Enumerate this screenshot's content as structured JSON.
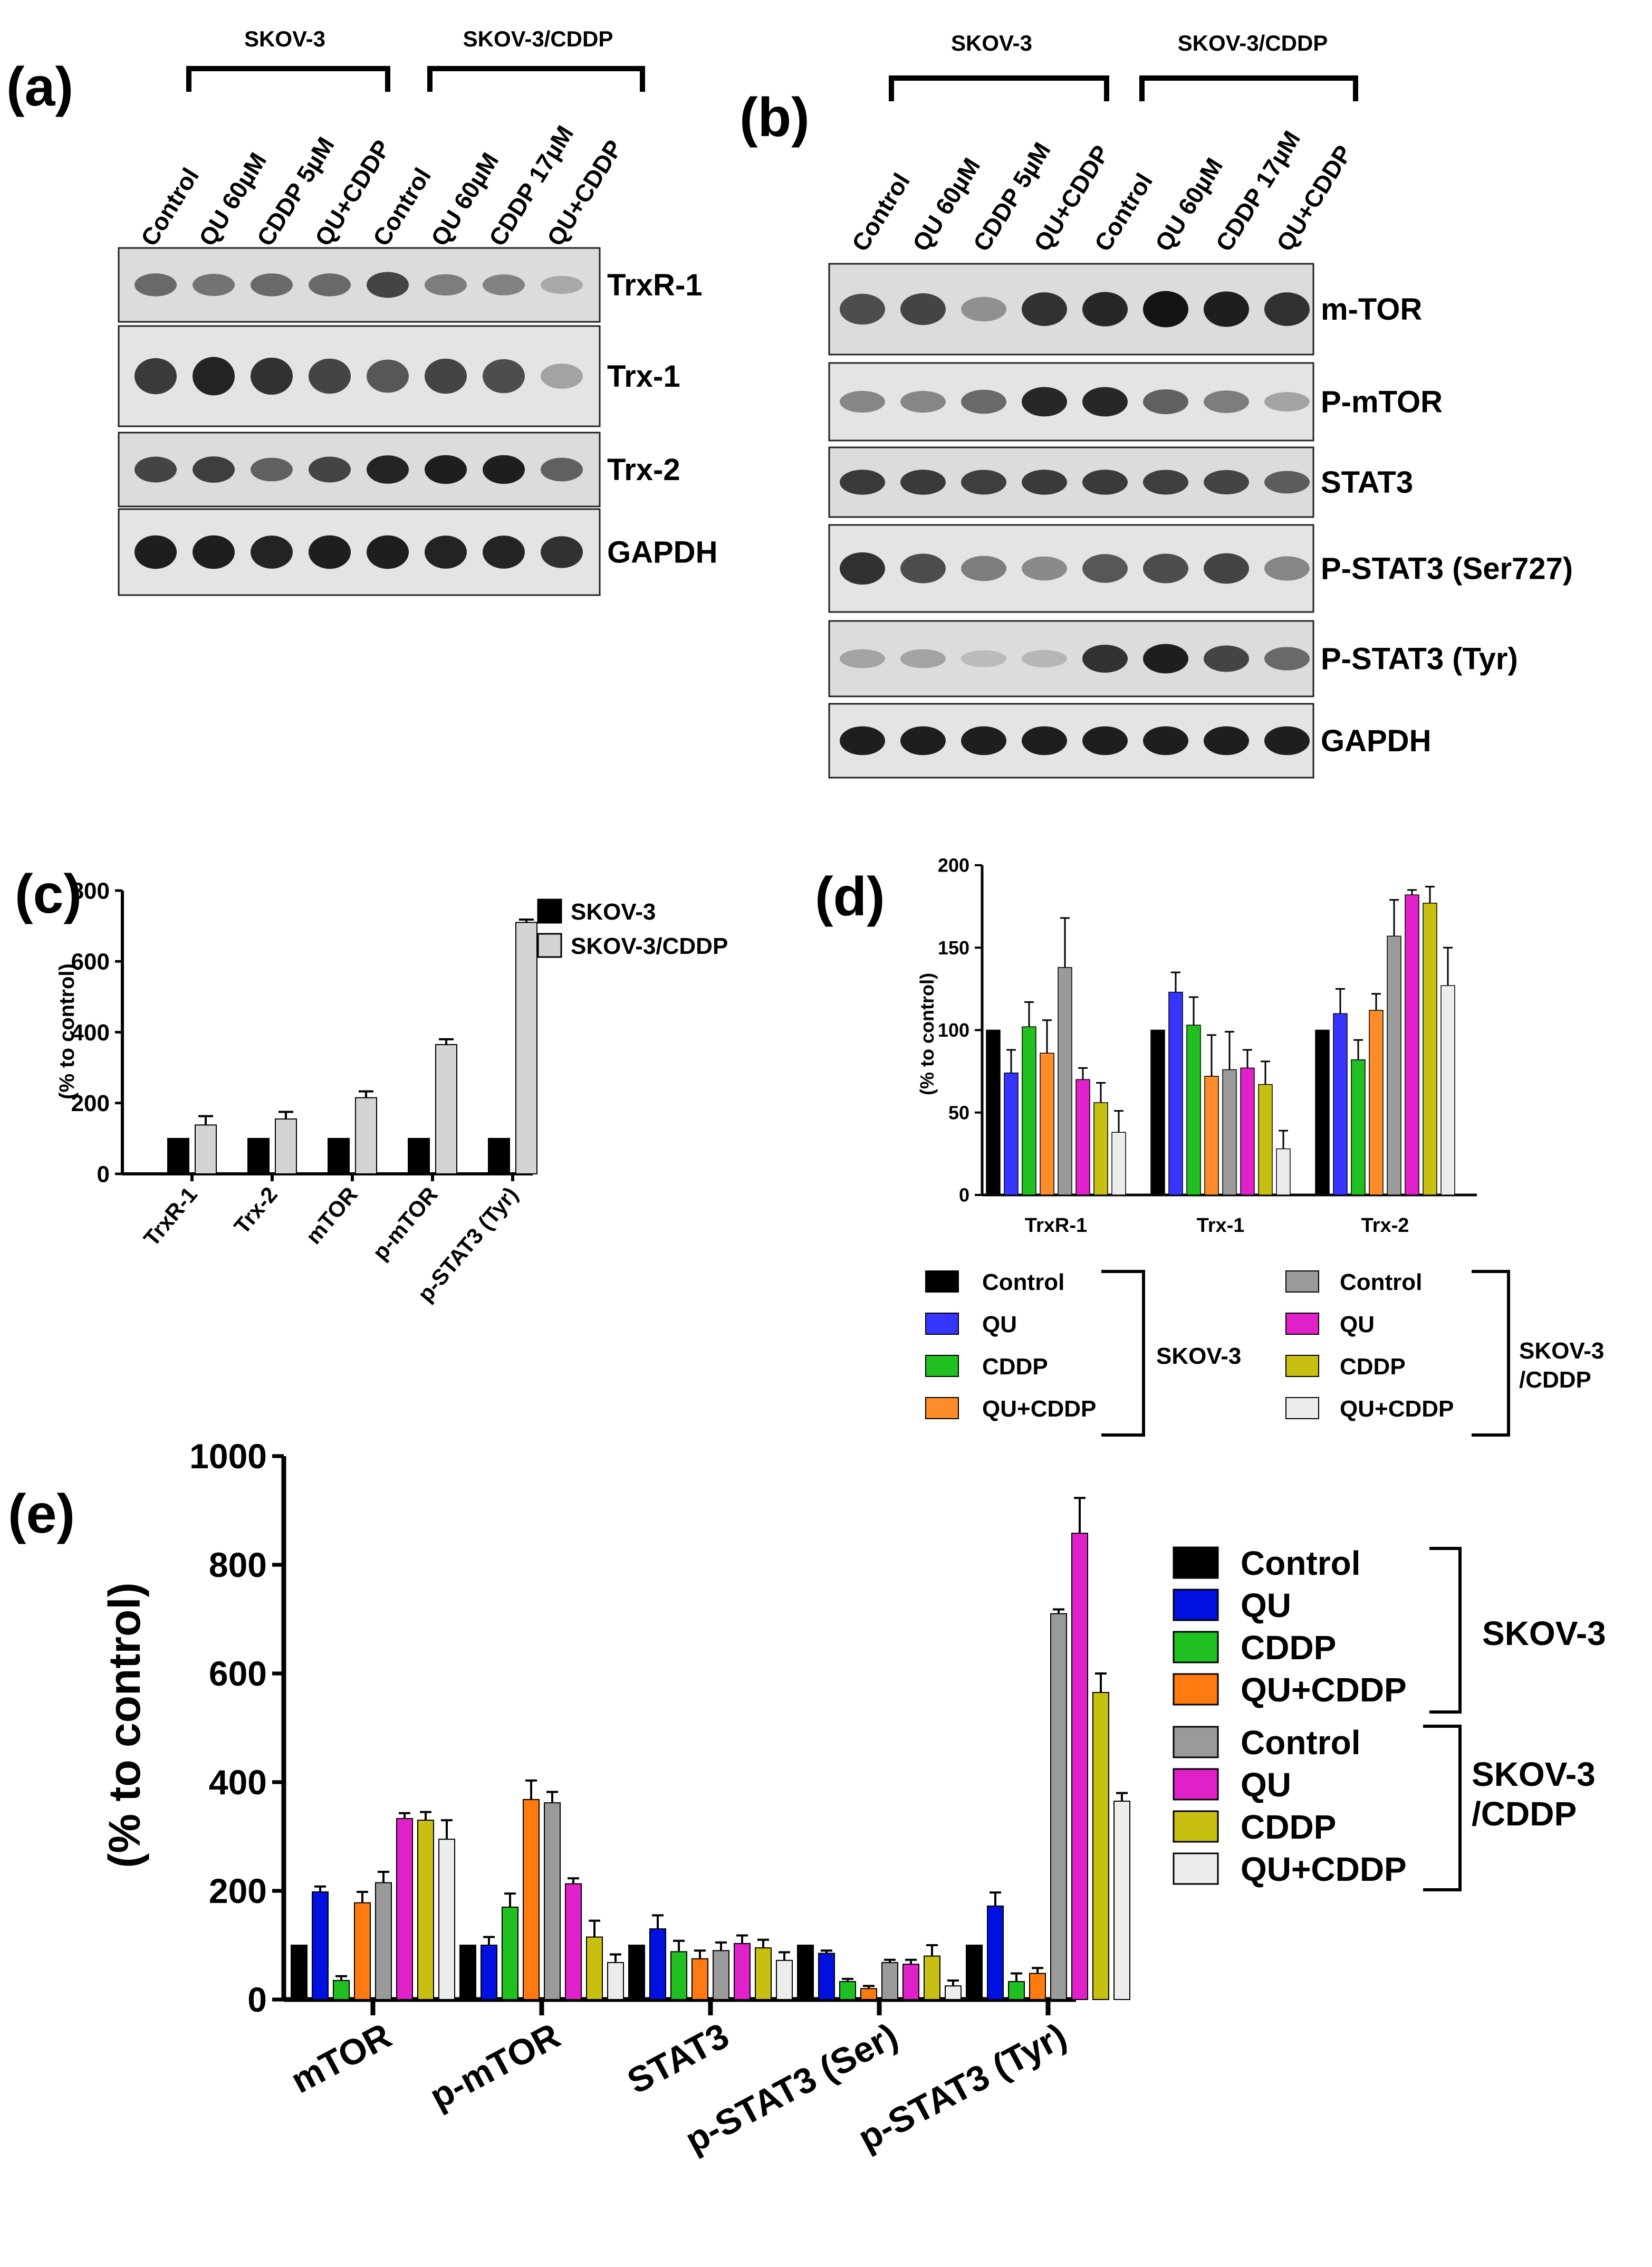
{
  "panels": {
    "a": {
      "label": "(a)",
      "group_left": "SKOV-3",
      "group_right": "SKOV-3/CDDP",
      "lanes": [
        "Control",
        "QU 60µM",
        "CDDP 5µM",
        "QU+CDDP",
        "Control",
        "QU 60µM",
        "CDDP 17µM",
        "QU+CDDP"
      ],
      "blots": [
        {
          "name": "TrxR-1",
          "intensity": [
            0.55,
            0.5,
            0.55,
            0.55,
            0.75,
            0.45,
            0.42,
            0.22
          ]
        },
        {
          "name": "Trx-1",
          "intensity": [
            0.8,
            0.92,
            0.85,
            0.75,
            0.65,
            0.75,
            0.7,
            0.25
          ]
        },
        {
          "name": "Trx-2",
          "intensity": [
            0.75,
            0.78,
            0.6,
            0.75,
            0.92,
            0.95,
            0.95,
            0.6
          ]
        },
        {
          "name": "GAPDH",
          "intensity": [
            0.95,
            0.95,
            0.92,
            0.95,
            0.95,
            0.92,
            0.92,
            0.85
          ]
        }
      ]
    },
    "b": {
      "label": "(b)",
      "group_left": "SKOV-3",
      "group_right": "SKOV-3/CDDP",
      "lanes": [
        "Control",
        "QU 60µM",
        "CDDP 5µM",
        "QU+CDDP",
        "Control",
        "QU 60µM",
        "CDDP 17µM",
        "QU+CDDP"
      ],
      "blots": [
        {
          "name": "m-TOR",
          "intensity": [
            0.7,
            0.75,
            0.35,
            0.85,
            0.9,
            1.0,
            0.95,
            0.85
          ]
        },
        {
          "name": "P-mTOR",
          "intensity": [
            0.4,
            0.4,
            0.55,
            0.9,
            0.9,
            0.6,
            0.45,
            0.25
          ]
        },
        {
          "name": "STAT3",
          "intensity": [
            0.8,
            0.8,
            0.78,
            0.8,
            0.8,
            0.78,
            0.75,
            0.62
          ]
        },
        {
          "name": "P-STAT3 (Ser727)",
          "intensity": [
            0.85,
            0.7,
            0.45,
            0.38,
            0.65,
            0.7,
            0.75,
            0.4
          ]
        },
        {
          "name": "P-STAT3 (Tyr)",
          "intensity": [
            0.25,
            0.25,
            0.12,
            0.15,
            0.85,
            0.95,
            0.75,
            0.55
          ]
        },
        {
          "name": "GAPDH",
          "intensity": [
            0.95,
            0.95,
            0.95,
            0.95,
            0.95,
            0.95,
            0.95,
            0.95
          ]
        }
      ]
    },
    "c": {
      "label": "(c)"
    },
    "d": {
      "label": "(d)",
      "legend_left": [
        "Control",
        "QU",
        "CDDP",
        "QU+CDDP"
      ],
      "legend_right": [
        "Control",
        "QU",
        "CDDP",
        "QU+CDDP"
      ],
      "group_left": "SKOV-3",
      "group_right_line1": "SKOV-3",
      "group_right_line2": "/CDDP"
    },
    "e": {
      "label": "(e)",
      "legend_top": [
        "Control",
        "QU",
        "CDDP",
        "QU+CDDP"
      ],
      "legend_bottom": [
        "Control",
        "QU",
        "CDDP",
        "QU+CDDP"
      ],
      "group_top": "SKOV-3",
      "group_bottom_line1": "SKOV-3",
      "group_bottom_line2": "/CDDP"
    }
  },
  "colors": {
    "control": "#000000",
    "qu": "#3535ff",
    "cddp": "#20c020",
    "qucddp": "#ff8c2a",
    "r_control": "#9a9a9a",
    "r_qu": "#e020c8",
    "r_cddp": "#c8c010",
    "r_qucddp": "#ececec",
    "qu_e": "#0010e0",
    "qucddp_e": "#ff7a10",
    "light_gray": "#d4d4d4"
  },
  "chart_data": [
    {
      "panel": "c",
      "type": "bar",
      "categories": [
        "TrxR-1",
        "Trx-2",
        "mTOR",
        "p-mTOR",
        "p-STAT3 (Tyr)"
      ],
      "ylabel": "(% to control)",
      "ylim": [
        0,
        800
      ],
      "yticks": [
        0,
        200,
        400,
        600,
        800
      ],
      "series": [
        {
          "name": "SKOV-3",
          "values": [
            100,
            100,
            100,
            100,
            100
          ],
          "errors": [
            0,
            0,
            0,
            0,
            0
          ]
        },
        {
          "name": "SKOV-3/CDDP",
          "values": [
            138,
            155,
            215,
            365,
            710
          ],
          "errors": [
            25,
            20,
            18,
            15,
            8
          ]
        }
      ]
    },
    {
      "panel": "d",
      "type": "bar",
      "categories": [
        "TrxR-1",
        "Trx-1",
        "Trx-2"
      ],
      "ylabel": "(% to control)",
      "ylim": [
        0,
        200
      ],
      "yticks": [
        0,
        50,
        100,
        150,
        200
      ],
      "series": [
        {
          "name": "Control",
          "group": "SKOV-3",
          "values": [
            100,
            100,
            100
          ],
          "errors": [
            0,
            0,
            0
          ]
        },
        {
          "name": "QU",
          "group": "SKOV-3",
          "values": [
            74,
            123,
            110
          ],
          "errors": [
            14,
            12,
            15
          ]
        },
        {
          "name": "CDDP",
          "group": "SKOV-3",
          "values": [
            102,
            103,
            82
          ],
          "errors": [
            15,
            17,
            12
          ]
        },
        {
          "name": "QU+CDDP",
          "group": "SKOV-3",
          "values": [
            86,
            72,
            112
          ],
          "errors": [
            20,
            25,
            10
          ]
        },
        {
          "name": "Control",
          "group": "SKOV-3/CDDP",
          "values": [
            138,
            76,
            157
          ],
          "errors": [
            30,
            23,
            22
          ]
        },
        {
          "name": "QU",
          "group": "SKOV-3/CDDP",
          "values": [
            70,
            77,
            182
          ],
          "errors": [
            7,
            11,
            3
          ]
        },
        {
          "name": "CDDP",
          "group": "SKOV-3/CDDP",
          "values": [
            56,
            67,
            177
          ],
          "errors": [
            12,
            14,
            10
          ]
        },
        {
          "name": "QU+CDDP",
          "group": "SKOV-3/CDDP",
          "values": [
            38,
            28,
            127
          ],
          "errors": [
            13,
            11,
            23
          ]
        }
      ]
    },
    {
      "panel": "e",
      "type": "bar",
      "categories": [
        "mTOR",
        "p-mTOR",
        "STAT3",
        "p-STAT3 (Ser)",
        "p-STAT3 (Tyr)"
      ],
      "ylabel": "(% to control)",
      "ylim": [
        0,
        1000
      ],
      "yticks": [
        0,
        200,
        400,
        600,
        800,
        1000
      ],
      "series": [
        {
          "name": "Control",
          "group": "SKOV-3",
          "values": [
            100,
            100,
            100,
            100,
            100
          ],
          "errors": [
            0,
            0,
            0,
            0,
            0
          ]
        },
        {
          "name": "QU",
          "group": "SKOV-3",
          "values": [
            198,
            100,
            130,
            85,
            172
          ],
          "errors": [
            10,
            15,
            25,
            5,
            25
          ]
        },
        {
          "name": "CDDP",
          "group": "SKOV-3",
          "values": [
            35,
            170,
            88,
            33,
            33
          ],
          "errors": [
            8,
            25,
            20,
            5,
            15
          ]
        },
        {
          "name": "QU+CDDP",
          "group": "SKOV-3",
          "values": [
            178,
            368,
            75,
            20,
            48
          ],
          "errors": [
            20,
            35,
            15,
            5,
            10
          ]
        },
        {
          "name": "Control",
          "group": "SKOV-3/CDDP",
          "values": [
            215,
            362,
            90,
            68,
            710
          ],
          "errors": [
            20,
            20,
            15,
            5,
            8
          ]
        },
        {
          "name": "QU",
          "group": "SKOV-3/CDDP",
          "values": [
            333,
            213,
            103,
            65,
            858
          ],
          "errors": [
            10,
            10,
            15,
            8,
            65
          ]
        },
        {
          "name": "CDDP",
          "group": "SKOV-3/CDDP",
          "values": [
            330,
            115,
            95,
            80,
            565
          ],
          "errors": [
            15,
            30,
            15,
            20,
            35
          ]
        },
        {
          "name": "QU+CDDP",
          "group": "SKOV-3/CDDP",
          "values": [
            295,
            68,
            72,
            25,
            365
          ],
          "errors": [
            35,
            15,
            15,
            10,
            15
          ]
        }
      ]
    }
  ]
}
